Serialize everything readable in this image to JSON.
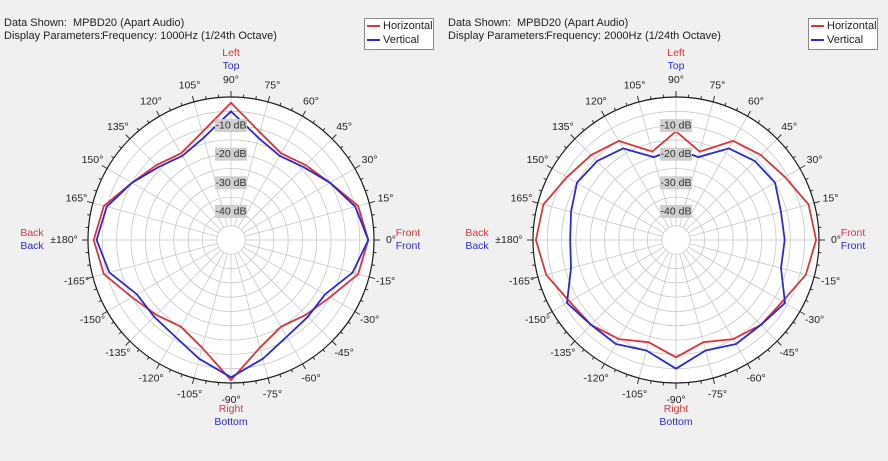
{
  "colors": {
    "horizontal": "#d9363a",
    "vertical": "#2b2bd1",
    "background": "#f0f0f0",
    "grid": "#c8c8c8"
  },
  "chart_data": [
    {
      "type": "polar-line",
      "info": {
        "data_label": "Data Shown:",
        "data_value": "MPBD20 (Apart Audio)",
        "params_label": "Display Parameters:",
        "params_value": "Frequency: 1000Hz (1/24th Octave)"
      },
      "legend": [
        "Horizontal",
        "Vertical"
      ],
      "rings_db": [
        "-10 dB",
        "-20 dB",
        "-30 dB",
        "-40 dB"
      ],
      "r_range_db": [
        -50,
        0
      ],
      "angle_labels": [
        {
          "deg": 0,
          "text": "0°"
        },
        {
          "deg": 15,
          "text": "15°"
        },
        {
          "deg": 30,
          "text": "30°"
        },
        {
          "deg": 45,
          "text": "45°"
        },
        {
          "deg": 60,
          "text": "60°"
        },
        {
          "deg": 75,
          "text": "75°"
        },
        {
          "deg": 90,
          "text": "90°"
        },
        {
          "deg": 105,
          "text": "105°"
        },
        {
          "deg": 120,
          "text": "120°"
        },
        {
          "deg": 135,
          "text": "135°"
        },
        {
          "deg": 150,
          "text": "150°"
        },
        {
          "deg": 165,
          "text": "165°"
        },
        {
          "deg": 180,
          "text": "±180°"
        },
        {
          "deg": 195,
          "text": "-165°"
        },
        {
          "deg": 210,
          "text": "-150°"
        },
        {
          "deg": 225,
          "text": "-135°"
        },
        {
          "deg": 240,
          "text": "-120°"
        },
        {
          "deg": 255,
          "text": "-105°"
        },
        {
          "deg": 270,
          "text": "-90°"
        },
        {
          "deg": 285,
          "text": "-75°"
        },
        {
          "deg": 300,
          "text": "-60°"
        },
        {
          "deg": 315,
          "text": "-45°"
        },
        {
          "deg": 330,
          "text": "-30°"
        },
        {
          "deg": 345,
          "text": "-15°"
        }
      ],
      "direction_labels": {
        "top": [
          "Left",
          "Top"
        ],
        "bottom": [
          "Right",
          "Bottom"
        ],
        "front": [
          "Front",
          "Front"
        ],
        "back": [
          "Back",
          "Back"
        ]
      },
      "angles_deg": [
        0,
        15,
        30,
        45,
        60,
        75,
        90,
        105,
        120,
        135,
        150,
        165,
        180,
        195,
        210,
        225,
        240,
        255,
        270,
        285,
        300,
        315,
        330,
        345
      ],
      "series": [
        {
          "name": "Horizontal",
          "values_db": [
            -2,
            -4,
            -10,
            -13,
            -15,
            -11,
            -2,
            -11,
            -15,
            -13,
            -10,
            -4,
            -2,
            -4,
            -10,
            -13,
            -15,
            -11,
            -1,
            -11,
            -15,
            -13,
            -10,
            -4
          ]
        },
        {
          "name": "Vertical",
          "values_db": [
            -2,
            -5,
            -10,
            -14,
            -16,
            -13,
            -5,
            -13,
            -16,
            -14,
            -10,
            -5,
            -3,
            -6,
            -12,
            -12,
            -11,
            -7,
            -2,
            -7,
            -11,
            -12,
            -12,
            -6
          ]
        }
      ]
    },
    {
      "type": "polar-line",
      "info": {
        "data_label": "Data Shown:",
        "data_value": "MPBD20 (Apart Audio)",
        "params_label": "Display Parameters:",
        "params_value": "Frequency: 2000Hz (1/24th Octave)"
      },
      "legend": [
        "Horizontal",
        "Vertical"
      ],
      "rings_db": [
        "-10 dB",
        "-20 dB",
        "-30 dB",
        "-40 dB"
      ],
      "r_range_db": [
        -50,
        0
      ],
      "angle_labels": [
        {
          "deg": 0,
          "text": "0°"
        },
        {
          "deg": 15,
          "text": "15°"
        },
        {
          "deg": 30,
          "text": "30°"
        },
        {
          "deg": 45,
          "text": "45°"
        },
        {
          "deg": 60,
          "text": "60°"
        },
        {
          "deg": 75,
          "text": "75°"
        },
        {
          "deg": 90,
          "text": "90°"
        },
        {
          "deg": 105,
          "text": "105°"
        },
        {
          "deg": 120,
          "text": "120°"
        },
        {
          "deg": 135,
          "text": "135°"
        },
        {
          "deg": 150,
          "text": "150°"
        },
        {
          "deg": 165,
          "text": "165°"
        },
        {
          "deg": 180,
          "text": "±180°"
        },
        {
          "deg": 195,
          "text": "-165°"
        },
        {
          "deg": 210,
          "text": "-150°"
        },
        {
          "deg": 225,
          "text": "-135°"
        },
        {
          "deg": 240,
          "text": "-120°"
        },
        {
          "deg": 255,
          "text": "-105°"
        },
        {
          "deg": 270,
          "text": "-90°"
        },
        {
          "deg": 285,
          "text": "-75°"
        },
        {
          "deg": 300,
          "text": "-60°"
        },
        {
          "deg": 315,
          "text": "-45°"
        },
        {
          "deg": 330,
          "text": "-30°"
        },
        {
          "deg": 345,
          "text": "-15°"
        }
      ],
      "direction_labels": {
        "top": [
          "Left",
          "Top"
        ],
        "bottom": [
          "Right",
          "Bottom"
        ],
        "front": [
          "Front",
          "Front"
        ],
        "back": [
          "Back",
          "Back"
        ]
      },
      "angles_deg": [
        0,
        15,
        30,
        45,
        60,
        75,
        90,
        105,
        120,
        135,
        150,
        165,
        180,
        195,
        210,
        225,
        240,
        255,
        270,
        285,
        300,
        315,
        330,
        345
      ],
      "series": [
        {
          "name": "Horizontal",
          "values_db": [
            -1,
            -2,
            -6,
            -8,
            -10,
            -18,
            -12,
            -18,
            -10,
            -8,
            -6,
            -2,
            -1,
            -3,
            -7,
            -8,
            -10,
            -13,
            -9,
            -13,
            -10,
            -8,
            -7,
            -3
          ]
        },
        {
          "name": "Vertical",
          "values_db": [
            -12,
            -12,
            -10,
            -11,
            -13,
            -20,
            -18,
            -20,
            -13,
            -11,
            -10,
            -12,
            -13,
            -12,
            -6,
            -8,
            -8,
            -10,
            -5,
            -10,
            -8,
            -8,
            -6,
            -12
          ]
        }
      ]
    }
  ]
}
